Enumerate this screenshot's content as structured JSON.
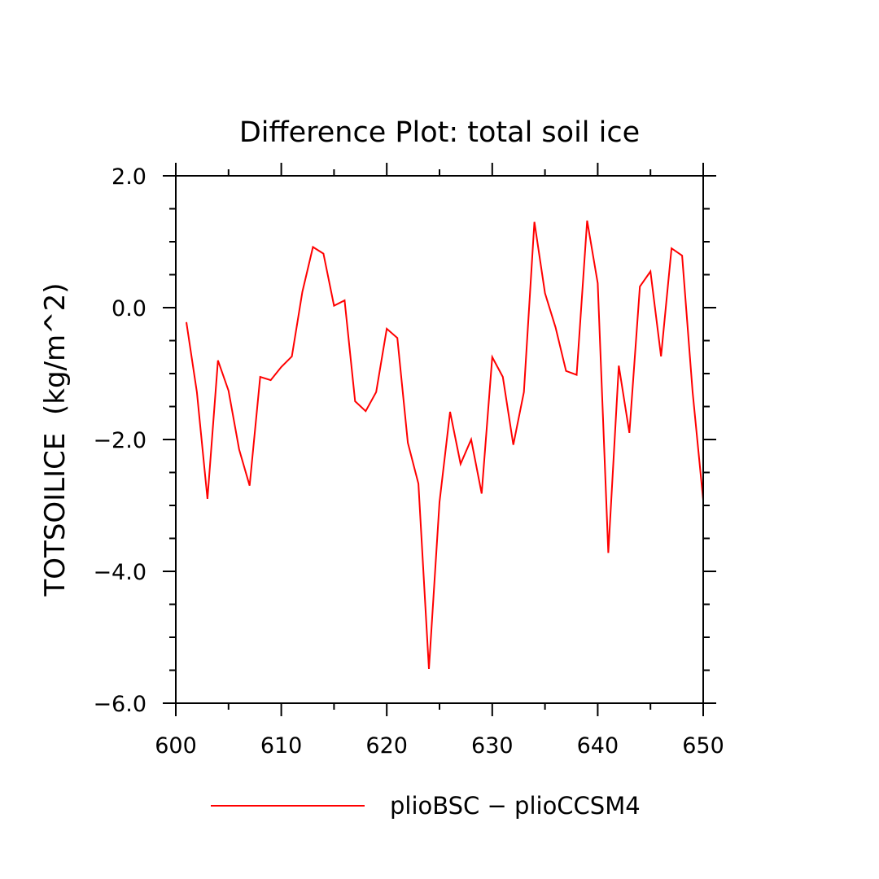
{
  "chart_data": {
    "type": "line",
    "title": "Difference Plot: total soil ice",
    "ylabel": "TOTSOILICE  (kg/m^2)",
    "xlabel": "",
    "xlim": [
      600,
      650
    ],
    "ylim": [
      -6.0,
      2.0
    ],
    "x_ticks": [
      600,
      610,
      620,
      630,
      640,
      650
    ],
    "x_tick_labels": [
      "600",
      "610",
      "620",
      "630",
      "640",
      "650"
    ],
    "y_ticks": [
      -6,
      -4,
      -2,
      0,
      2
    ],
    "y_tick_labels": [
      "−6.0",
      "−4.0",
      "−2.0",
      "0.0",
      "2.0"
    ],
    "grid": false,
    "legend": "bottom",
    "series": [
      {
        "name": "plioBSC − plioCCSM4",
        "color": "#ff0000",
        "x": [
          601,
          602,
          603,
          604,
          605,
          606,
          607,
          608,
          609,
          610,
          611,
          612,
          613,
          614,
          615,
          616,
          617,
          618,
          619,
          620,
          621,
          622,
          623,
          624,
          625,
          626,
          627,
          628,
          629,
          630,
          631,
          632,
          633,
          634,
          635,
          636,
          637,
          638,
          639,
          640,
          641,
          642,
          643,
          644,
          645,
          646,
          647,
          648,
          649,
          650
        ],
        "values": [
          -0.22,
          -1.28,
          -2.9,
          -0.8,
          -1.26,
          -2.15,
          -2.7,
          -1.05,
          -1.1,
          -0.9,
          -0.74,
          0.24,
          0.92,
          0.82,
          0.03,
          0.11,
          -1.42,
          -1.57,
          -1.28,
          -0.32,
          -0.46,
          -2.05,
          -2.67,
          -5.48,
          -2.95,
          -1.58,
          -2.37,
          -2.0,
          -2.82,
          -0.75,
          -1.05,
          -2.08,
          -1.28,
          1.3,
          0.22,
          -0.3,
          -0.96,
          -1.02,
          1.32,
          0.37,
          -3.72,
          -0.88,
          -1.9,
          0.32,
          0.55,
          -0.74,
          0.9,
          0.79,
          -1.28,
          -2.92
        ]
      }
    ]
  }
}
